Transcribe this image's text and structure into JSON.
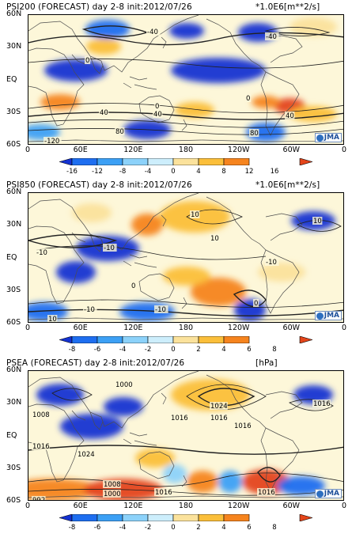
{
  "panels": [
    {
      "id": "psi200",
      "title": "PSI200 (FORECAST) day 2-8 init:2012/07/26",
      "unit": "*1.0E6[m**2/s]",
      "colorbar": [
        "-16",
        "-12",
        "-8",
        "-4",
        "0",
        "4",
        "8",
        "12",
        "16"
      ],
      "contour_labels": [
        "-40",
        "-40",
        "0",
        "0",
        "40",
        "40",
        "40",
        "80",
        "-120",
        "80",
        "0"
      ]
    },
    {
      "id": "psi850",
      "title": "PSI850 (FORECAST) day 2-8 init:2012/07/26",
      "unit": "*1.0E6[m**2/s]",
      "colorbar": [
        "-8",
        "-6",
        "-4",
        "-2",
        "0",
        "2",
        "4",
        "6",
        "8"
      ],
      "contour_labels": [
        "10",
        "10",
        "-10",
        "-10",
        "-10",
        "-10",
        "-10",
        "10",
        "10",
        "0",
        "0"
      ]
    },
    {
      "id": "psea",
      "title": "PSEA (FORECAST) day 2-8 init:2012/07/26",
      "unit": "[hPa]",
      "colorbar": [
        "-8",
        "-6",
        "-4",
        "-2",
        "0",
        "2",
        "4",
        "6",
        "8"
      ],
      "contour_labels": [
        "1000",
        "1008",
        "1016",
        "1024",
        "1024",
        "1016",
        "1016",
        "1016",
        "1008",
        "1000",
        "1016",
        "1016",
        "992",
        "1016"
      ]
    }
  ],
  "lat_labels": [
    "60N",
    "30N",
    "EQ",
    "30S",
    "60S"
  ],
  "lon_labels": [
    "0",
    "60E",
    "120E",
    "180",
    "120W",
    "60W",
    "0"
  ],
  "logo": "JMA",
  "colors": {
    "neg": [
      "#1432d2",
      "#1e6ef0",
      "#3ca0f5",
      "#8cd2fa",
      "#cdeefc"
    ],
    "pos": [
      "#fdf7d9",
      "#fbe29c",
      "#fbbf3a",
      "#f6841e",
      "#e4451a"
    ],
    "contour": "#222222",
    "coast": "#4d4d4d"
  }
}
